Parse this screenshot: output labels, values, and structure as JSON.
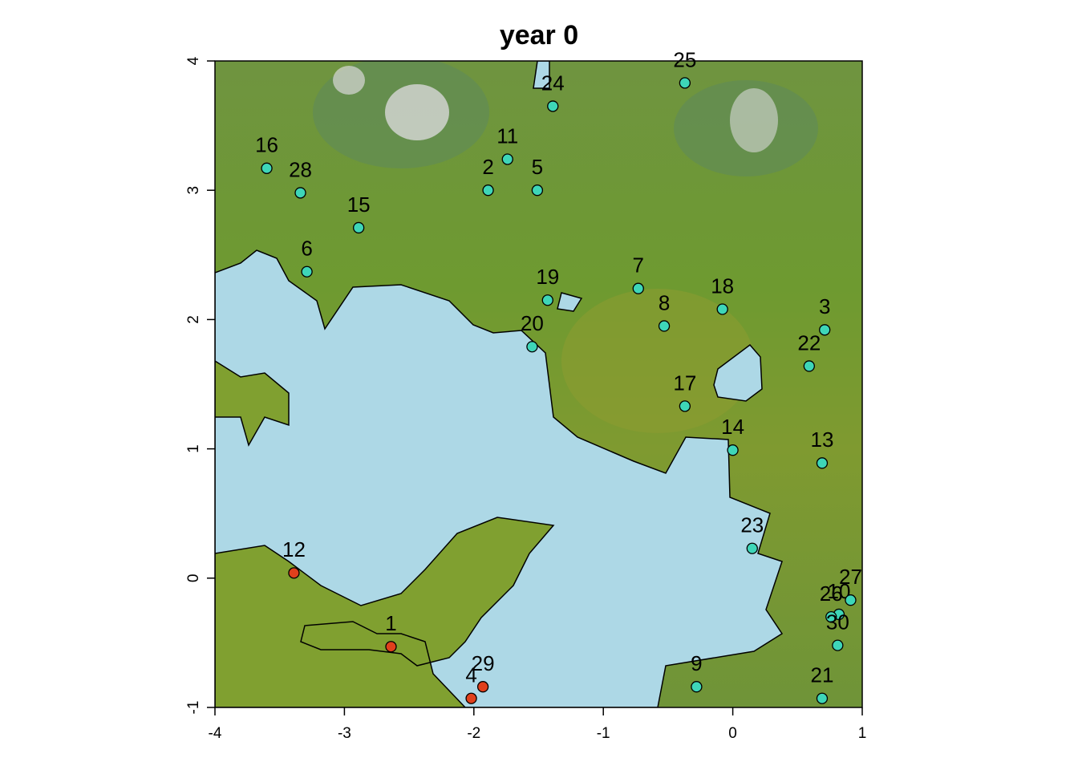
{
  "chart_data": {
    "type": "scatter",
    "title": "year 0",
    "x": [
      -2.64,
      -1.89,
      0.71,
      -2.02,
      -1.51,
      -3.29,
      -0.73,
      -0.53,
      -0.28,
      0.82,
      -1.74,
      -3.39,
      0.69,
      0.0,
      -2.89,
      -3.6,
      -0.37,
      -0.08,
      -1.43,
      -1.55,
      0.69,
      0.59,
      0.15,
      -1.39,
      -0.37,
      0.76,
      0.91,
      -3.34,
      -1.93,
      0.81
    ],
    "y": [
      -0.53,
      3.0,
      1.92,
      -0.93,
      3.0,
      2.37,
      2.24,
      1.95,
      -0.84,
      -0.28,
      3.24,
      0.04,
      0.89,
      0.99,
      2.71,
      3.17,
      1.33,
      2.08,
      2.15,
      1.79,
      -0.93,
      1.64,
      0.23,
      3.65,
      3.83,
      -0.3,
      -0.17,
      2.98,
      -0.84,
      -0.52
    ],
    "labels": [
      "1",
      "2",
      "3",
      "4",
      "5",
      "6",
      "7",
      "8",
      "9",
      "10",
      "11",
      "12",
      "13",
      "14",
      "15",
      "16",
      "17",
      "18",
      "19",
      "20",
      "21",
      "22",
      "23",
      "24",
      "25",
      "26",
      "27",
      "28",
      "29",
      "30"
    ],
    "colors": [
      "#e0401c",
      "#3ed6b8",
      "#3ed6b8",
      "#e0401c",
      "#3ed6b8",
      "#3ed6b8",
      "#3ed6b8",
      "#3ed6b8",
      "#3ed6b8",
      "#3ed6b8",
      "#3ed6b8",
      "#e0401c",
      "#3ed6b8",
      "#3ed6b8",
      "#3ed6b8",
      "#3ed6b8",
      "#3ed6b8",
      "#3ed6b8",
      "#3ed6b8",
      "#3ed6b8",
      "#3ed6b8",
      "#3ed6b8",
      "#3ed6b8",
      "#3ed6b8",
      "#3ed6b8",
      "#3ed6b8",
      "#3ed6b8",
      "#3ed6b8",
      "#e0401c",
      "#3ed6b8"
    ],
    "xlim": [
      -4,
      1
    ],
    "ylim": [
      -1,
      4
    ],
    "xticks": [
      -4,
      -3,
      -2,
      -1,
      0,
      1
    ],
    "yticks": [
      -1,
      0,
      1,
      2,
      3,
      4
    ]
  }
}
